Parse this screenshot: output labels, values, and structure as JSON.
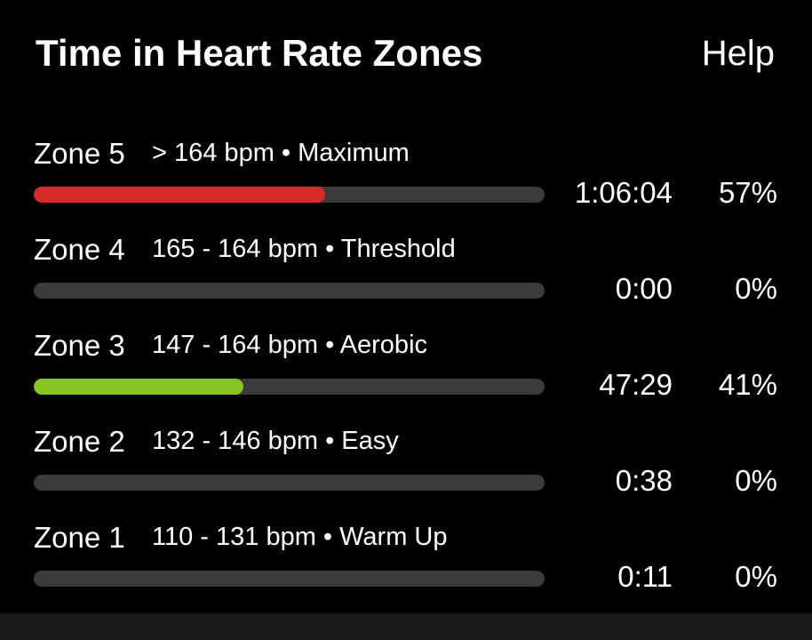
{
  "header": {
    "title": "Time in Heart Rate Zones",
    "help": "Help"
  },
  "zones": [
    {
      "name": "Zone 5",
      "detail": "> 164 bpm • Maximum",
      "time": "1:06:04",
      "percent": 57,
      "percent_label": "57%",
      "color": "#d62b2b"
    },
    {
      "name": "Zone 4",
      "detail": "165 - 164 bpm • Threshold",
      "time": "0:00",
      "percent": 0,
      "percent_label": "0%",
      "color": "#e07a1f"
    },
    {
      "name": "Zone 3",
      "detail": "147 - 164 bpm • Aerobic",
      "time": "47:29",
      "percent": 41,
      "percent_label": "41%",
      "color": "#86c524"
    },
    {
      "name": "Zone 2",
      "detail": "132 - 146 bpm • Easy",
      "time": "0:38",
      "percent": 0,
      "percent_label": "0%",
      "color": "#2f73d4"
    },
    {
      "name": "Zone 1",
      "detail": "110 - 131 bpm • Warm Up",
      "time": "0:11",
      "percent": 0,
      "percent_label": "0%",
      "color": "#9a9a9a"
    }
  ]
}
